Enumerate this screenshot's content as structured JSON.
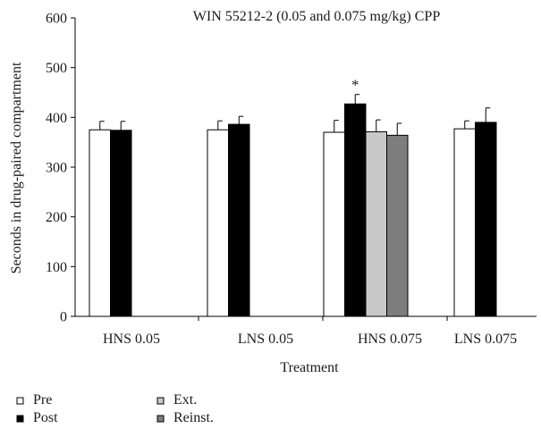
{
  "chart_data": {
    "type": "bar",
    "title": "WIN 55212-2 (0.05 and 0.075 mg/kg) CPP",
    "xlabel": "Treatment",
    "ylabel": "Seconds in drug-paired compartment",
    "ylim": [
      0,
      600
    ],
    "yticks": [
      "0",
      "100",
      "200",
      "300",
      "400",
      "500",
      "600"
    ],
    "grid": false,
    "legend_position": "bottom-left",
    "categories": [
      "HNS 0.05",
      "LNS 0.05",
      "HNS 0.075",
      "LNS 0.075"
    ],
    "series": [
      {
        "name": "Pre",
        "color": "#ffffff",
        "values": [
          375,
          375,
          370,
          377
        ],
        "errors": [
          17,
          18,
          24,
          16
        ]
      },
      {
        "name": "Post",
        "color": "#000000",
        "values": [
          374,
          386,
          427,
          390
        ],
        "errors": [
          18,
          16,
          19,
          29
        ]
      },
      {
        "name": "Ext.",
        "color": "#c8c8c8",
        "values": [
          null,
          null,
          371,
          null
        ],
        "errors": [
          null,
          null,
          24,
          null
        ]
      },
      {
        "name": "Reinst.",
        "color": "#7d7d7d",
        "values": [
          null,
          null,
          364,
          null
        ],
        "errors": [
          null,
          null,
          24,
          null
        ]
      }
    ],
    "annotations": [
      {
        "text": "*",
        "category": "HNS 0.075",
        "series": "Post"
      }
    ]
  }
}
